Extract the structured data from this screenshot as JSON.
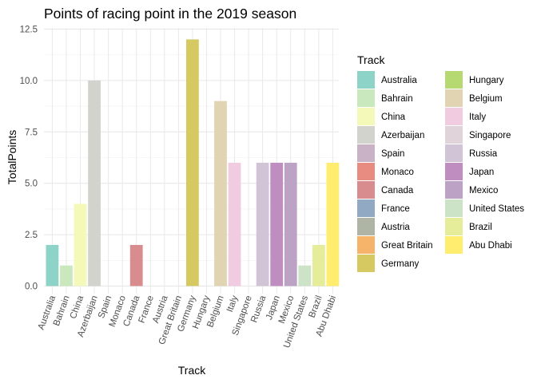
{
  "chart_data": {
    "type": "bar",
    "title": "Points of racing point in the 2019 season",
    "xlabel": "Track",
    "ylabel": "TotalPoints",
    "ylim": [
      0,
      12.5
    ],
    "yticks": [
      "0.0",
      "2.5",
      "5.0",
      "7.5",
      "10.0",
      "12.5"
    ],
    "grid": true,
    "legend_title": "Track",
    "legend_position": "right",
    "categories": [
      "Australia",
      "Bahrain",
      "China",
      "Azerbaijan",
      "Spain",
      "Monaco",
      "Canada",
      "France",
      "Austria",
      "Great Britain",
      "Germany",
      "Hungary",
      "Belgium",
      "Italy",
      "Singapore",
      "Russia",
      "Japan",
      "Mexico",
      "United States",
      "Brazil",
      "Abu Dhabi"
    ],
    "values": [
      2,
      1,
      4,
      10,
      0,
      0,
      2,
      0,
      0,
      0,
      12,
      0,
      9,
      6,
      0,
      6,
      6,
      6,
      1,
      2,
      6
    ],
    "colors": [
      "#8DD3C7",
      "#C9E8BD",
      "#F4F9B9",
      "#D3D3CD",
      "#C9B1C6",
      "#E88C81",
      "#D98C8E",
      "#92A9C4",
      "#AEB5A5",
      "#F6B46B",
      "#D7C961",
      "#B6DA71",
      "#E1D4B2",
      "#F1CCE0",
      "#E1D3DA",
      "#D1C4D6",
      "#C08DC1",
      "#BCA3C5",
      "#CCE3C8",
      "#E5EC9A",
      "#FFED6F"
    ]
  }
}
